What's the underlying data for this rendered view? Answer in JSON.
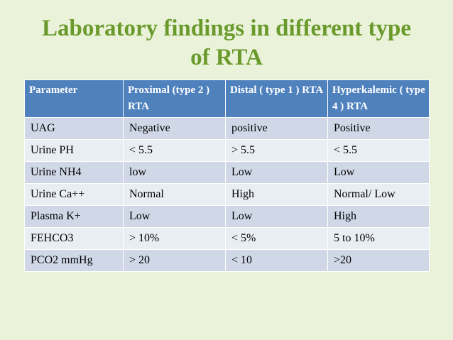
{
  "slide": {
    "title_line1": "Laboratory findings in different type",
    "title_line2": "of RTA",
    "title_color": "#6a9a2c",
    "background_color": "#eaf3d9"
  },
  "table": {
    "header_color": "#4f81bd",
    "headers": [
      "Parameter",
      "Proximal (type 2 ) RTA",
      "Distal ( type 1 ) RTA",
      "Hyperkalemic ( type 4 ) RTA"
    ],
    "rows": [
      [
        "UAG",
        "Negative",
        "positive",
        "Positive"
      ],
      [
        "Urine PH",
        "< 5.5",
        "> 5.5",
        "< 5.5"
      ],
      [
        "Urine NH4",
        "low",
        "Low",
        "Low"
      ],
      [
        "Urine Ca++",
        "Normal",
        "High",
        "Normal/ Low"
      ],
      [
        "Plasma K+",
        "Low",
        "Low",
        "High"
      ],
      [
        "FEHCO3",
        "> 10%",
        "< 5%",
        "5 to 10%"
      ],
      [
        "PCO2 mmHg",
        "> 20",
        "< 10",
        ">20"
      ]
    ]
  }
}
